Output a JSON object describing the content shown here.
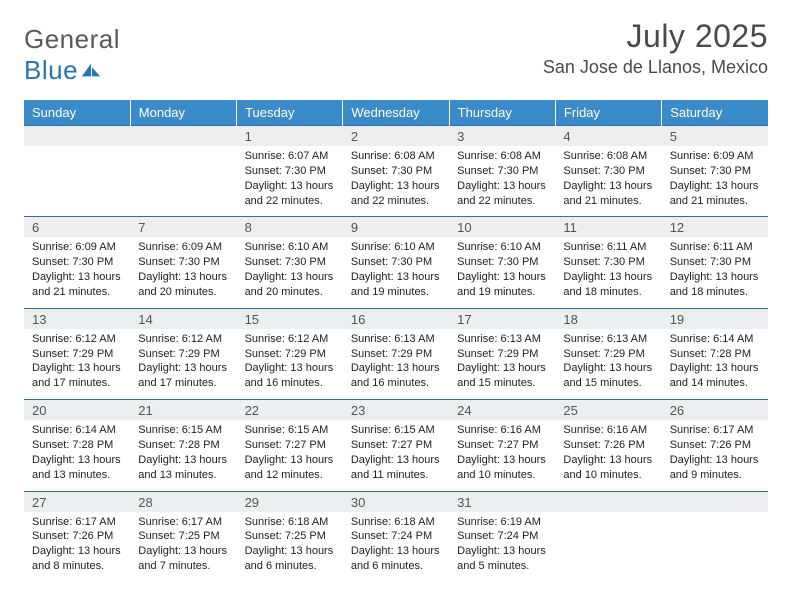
{
  "brand": {
    "word1": "General",
    "word2": "Blue"
  },
  "title": {
    "month": "July 2025",
    "location": "San Jose de Llanos, Mexico"
  },
  "colors": {
    "header_bg": "#3b8bc9",
    "header_text": "#ffffff",
    "row_border": "#2f6ea6",
    "daynum_bg": "#eceeef",
    "text": "#222222",
    "brand_gray": "#5a5a5a",
    "brand_blue": "#2a74b8"
  },
  "weekdays": [
    "Sunday",
    "Monday",
    "Tuesday",
    "Wednesday",
    "Thursday",
    "Friday",
    "Saturday"
  ],
  "labels": {
    "sunrise": "Sunrise:",
    "sunset": "Sunset:",
    "daylight": "Daylight:"
  },
  "weeks": [
    [
      null,
      null,
      {
        "n": "1",
        "sr": "6:07 AM",
        "ss": "7:30 PM",
        "dl": "13 hours and 22 minutes."
      },
      {
        "n": "2",
        "sr": "6:08 AM",
        "ss": "7:30 PM",
        "dl": "13 hours and 22 minutes."
      },
      {
        "n": "3",
        "sr": "6:08 AM",
        "ss": "7:30 PM",
        "dl": "13 hours and 22 minutes."
      },
      {
        "n": "4",
        "sr": "6:08 AM",
        "ss": "7:30 PM",
        "dl": "13 hours and 21 minutes."
      },
      {
        "n": "5",
        "sr": "6:09 AM",
        "ss": "7:30 PM",
        "dl": "13 hours and 21 minutes."
      }
    ],
    [
      {
        "n": "6",
        "sr": "6:09 AM",
        "ss": "7:30 PM",
        "dl": "13 hours and 21 minutes."
      },
      {
        "n": "7",
        "sr": "6:09 AM",
        "ss": "7:30 PM",
        "dl": "13 hours and 20 minutes."
      },
      {
        "n": "8",
        "sr": "6:10 AM",
        "ss": "7:30 PM",
        "dl": "13 hours and 20 minutes."
      },
      {
        "n": "9",
        "sr": "6:10 AM",
        "ss": "7:30 PM",
        "dl": "13 hours and 19 minutes."
      },
      {
        "n": "10",
        "sr": "6:10 AM",
        "ss": "7:30 PM",
        "dl": "13 hours and 19 minutes."
      },
      {
        "n": "11",
        "sr": "6:11 AM",
        "ss": "7:30 PM",
        "dl": "13 hours and 18 minutes."
      },
      {
        "n": "12",
        "sr": "6:11 AM",
        "ss": "7:30 PM",
        "dl": "13 hours and 18 minutes."
      }
    ],
    [
      {
        "n": "13",
        "sr": "6:12 AM",
        "ss": "7:29 PM",
        "dl": "13 hours and 17 minutes."
      },
      {
        "n": "14",
        "sr": "6:12 AM",
        "ss": "7:29 PM",
        "dl": "13 hours and 17 minutes."
      },
      {
        "n": "15",
        "sr": "6:12 AM",
        "ss": "7:29 PM",
        "dl": "13 hours and 16 minutes."
      },
      {
        "n": "16",
        "sr": "6:13 AM",
        "ss": "7:29 PM",
        "dl": "13 hours and 16 minutes."
      },
      {
        "n": "17",
        "sr": "6:13 AM",
        "ss": "7:29 PM",
        "dl": "13 hours and 15 minutes."
      },
      {
        "n": "18",
        "sr": "6:13 AM",
        "ss": "7:29 PM",
        "dl": "13 hours and 15 minutes."
      },
      {
        "n": "19",
        "sr": "6:14 AM",
        "ss": "7:28 PM",
        "dl": "13 hours and 14 minutes."
      }
    ],
    [
      {
        "n": "20",
        "sr": "6:14 AM",
        "ss": "7:28 PM",
        "dl": "13 hours and 13 minutes."
      },
      {
        "n": "21",
        "sr": "6:15 AM",
        "ss": "7:28 PM",
        "dl": "13 hours and 13 minutes."
      },
      {
        "n": "22",
        "sr": "6:15 AM",
        "ss": "7:27 PM",
        "dl": "13 hours and 12 minutes."
      },
      {
        "n": "23",
        "sr": "6:15 AM",
        "ss": "7:27 PM",
        "dl": "13 hours and 11 minutes."
      },
      {
        "n": "24",
        "sr": "6:16 AM",
        "ss": "7:27 PM",
        "dl": "13 hours and 10 minutes."
      },
      {
        "n": "25",
        "sr": "6:16 AM",
        "ss": "7:26 PM",
        "dl": "13 hours and 10 minutes."
      },
      {
        "n": "26",
        "sr": "6:17 AM",
        "ss": "7:26 PM",
        "dl": "13 hours and 9 minutes."
      }
    ],
    [
      {
        "n": "27",
        "sr": "6:17 AM",
        "ss": "7:26 PM",
        "dl": "13 hours and 8 minutes."
      },
      {
        "n": "28",
        "sr": "6:17 AM",
        "ss": "7:25 PM",
        "dl": "13 hours and 7 minutes."
      },
      {
        "n": "29",
        "sr": "6:18 AM",
        "ss": "7:25 PM",
        "dl": "13 hours and 6 minutes."
      },
      {
        "n": "30",
        "sr": "6:18 AM",
        "ss": "7:24 PM",
        "dl": "13 hours and 6 minutes."
      },
      {
        "n": "31",
        "sr": "6:19 AM",
        "ss": "7:24 PM",
        "dl": "13 hours and 5 minutes."
      },
      null,
      null
    ]
  ]
}
